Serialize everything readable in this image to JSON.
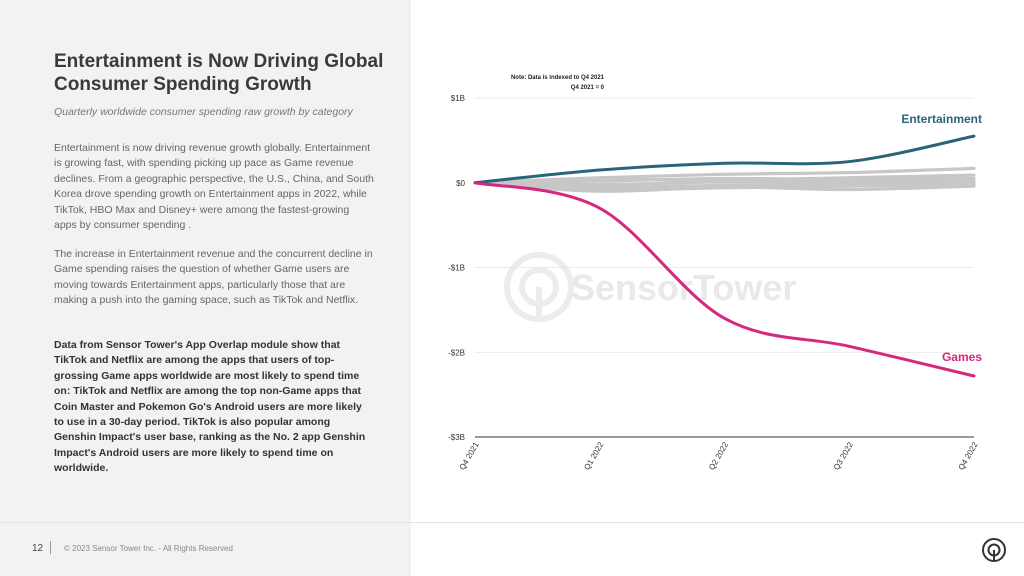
{
  "page": {
    "title": "Entertainment is Now Driving Global Consumer Spending Growth",
    "subtitle": "Quarterly worldwide consumer spending raw growth by category",
    "paragraphs": [
      "Entertainment is now driving revenue growth globally. Entertainment is growing fast, with spending picking up pace as Game revenue declines. From a geographic perspective, the U.S., China, and South Korea drove spending growth on Entertainment apps in 2022, while TikTok, HBO Max and Disney+ were among the fastest-growing apps by consumer spending .",
      "The increase in Entertainment revenue and the concurrent decline in Game spending raises the question of whether Game users are moving towards Entertainment apps, particularly those that are making a push into the gaming space, such as TikTok and Netflix.",
      "Data from Sensor Tower's App Overlap module show that TikTok and Netflix are among the apps that users of top-grossing Game apps worldwide are most likely to spend time on: TikTok and Netflix are among the top non-Game apps that Coin Master and Pokemon Go's Android users are more likely to use in a 30-day period. TikTok is also popular among Genshin Impact's user base, ranking as the No. 2 app Genshin Impact's Android users are more likely to spend time on worldwide."
    ],
    "page_number": "12",
    "copyright": "© 2023 Sensor Tower Inc. - All Rights Reserved",
    "watermark": "SensorTower",
    "brand_icon": "sensor-tower-logo-icon"
  },
  "chart_data": {
    "type": "line",
    "notes": [
      "Note: Data is indexed to Q4 2021",
      "Q4 2021 = 0"
    ],
    "x": [
      "Q4 2021",
      "Q1 2022",
      "Q2 2022",
      "Q3 2022",
      "Q4 2022"
    ],
    "y_ticks": [
      {
        "value": 1,
        "label": "$1B"
      },
      {
        "value": 0,
        "label": "$0"
      },
      {
        "value": -1,
        "label": "-$1B"
      },
      {
        "value": -2,
        "label": "-$2B"
      },
      {
        "value": -3,
        "label": "-$3B"
      }
    ],
    "ylim": [
      -3,
      1
    ],
    "grid": true,
    "series": [
      {
        "name": "Entertainment",
        "values": [
          0,
          0.15,
          0.23,
          0.25,
          0.55
        ],
        "color": "#2b6478",
        "labeled": true
      },
      {
        "name": "Games",
        "values": [
          0,
          -0.3,
          -1.6,
          -1.93,
          -2.28
        ],
        "color": "#d6287f",
        "labeled": true
      },
      {
        "values": [
          0,
          0.06,
          0.1,
          0.12,
          0.17
        ],
        "color": "#c7c7c7",
        "labeled": false
      },
      {
        "values": [
          0,
          0.04,
          0.03,
          0.06,
          0.09
        ],
        "color": "#c7c7c7",
        "labeled": false
      },
      {
        "values": [
          0,
          0.02,
          0.05,
          0.04,
          0.05
        ],
        "color": "#c7c7c7",
        "labeled": false
      },
      {
        "values": [
          0,
          -0.02,
          0.01,
          0.02,
          0.02
        ],
        "color": "#c7c7c7",
        "labeled": false
      },
      {
        "values": [
          0,
          -0.05,
          -0.03,
          -0.01,
          0.0
        ],
        "color": "#c7c7c7",
        "labeled": false
      },
      {
        "values": [
          0,
          -0.08,
          -0.06,
          -0.04,
          -0.02
        ],
        "color": "#c7c7c7",
        "labeled": false
      },
      {
        "values": [
          0,
          -0.1,
          -0.05,
          -0.08,
          -0.04
        ],
        "color": "#c7c7c7",
        "labeled": false
      }
    ]
  }
}
